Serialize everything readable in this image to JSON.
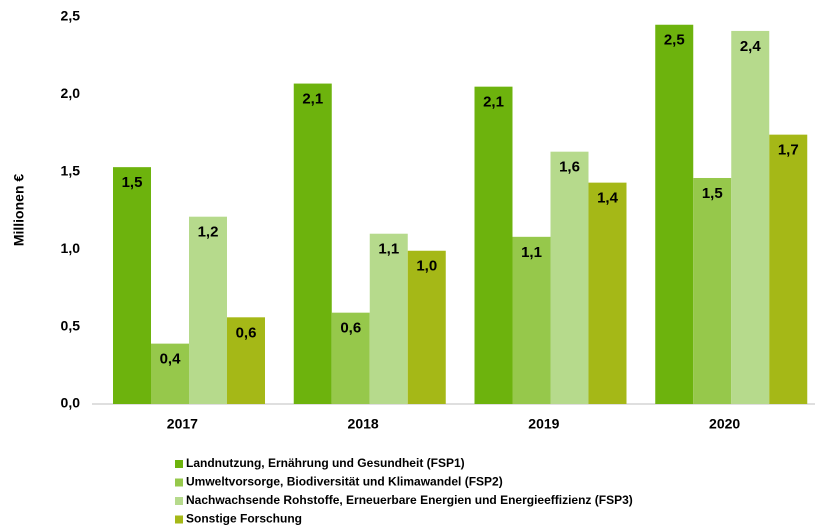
{
  "chart_data": {
    "type": "bar",
    "y_label": "Millionen €",
    "categories": [
      "2017",
      "2018",
      "2019",
      "2020"
    ],
    "series": [
      {
        "name": "Landnutzung, Ernährung und Gesundheit (FSP1)",
        "color": "#6db30d",
        "values": [
          1.53,
          2.07,
          2.05,
          2.45
        ],
        "value_labels": [
          "1,5",
          "2,1",
          "2,1",
          "2,5"
        ]
      },
      {
        "name": "Umweltvorsorge, Biodiversität und Klimawandel (FSP2)",
        "color": "#96c84b",
        "values": [
          0.39,
          0.59,
          1.08,
          1.46
        ],
        "value_labels": [
          "0,4",
          "0,6",
          "1,1",
          "1,5"
        ]
      },
      {
        "name": "Nachwachsende Rohstoffe, Erneuerbare Energien und Energieeffizienz (FSP3)",
        "color": "#b6da8c",
        "values": [
          1.21,
          1.1,
          1.63,
          2.41
        ],
        "value_labels": [
          "1,2",
          "1,1",
          "1,6",
          "2,4"
        ]
      },
      {
        "name": "Sonstige Forschung",
        "color": "#a5b817",
        "values": [
          0.56,
          0.99,
          1.43,
          1.74
        ],
        "value_labels": [
          "0,6",
          "1,0",
          "1,4",
          "1,7"
        ]
      }
    ],
    "ylim": [
      0,
      2.5
    ],
    "yticks": [
      {
        "value": 0,
        "label": "0,0"
      },
      {
        "value": 0.5,
        "label": "0,5"
      },
      {
        "value": 1,
        "label": "1,0"
      },
      {
        "value": 1.5,
        "label": "1,5"
      },
      {
        "value": 2,
        "label": "2,0"
      },
      {
        "value": 2.5,
        "label": "2,5"
      }
    ],
    "grid": false
  }
}
